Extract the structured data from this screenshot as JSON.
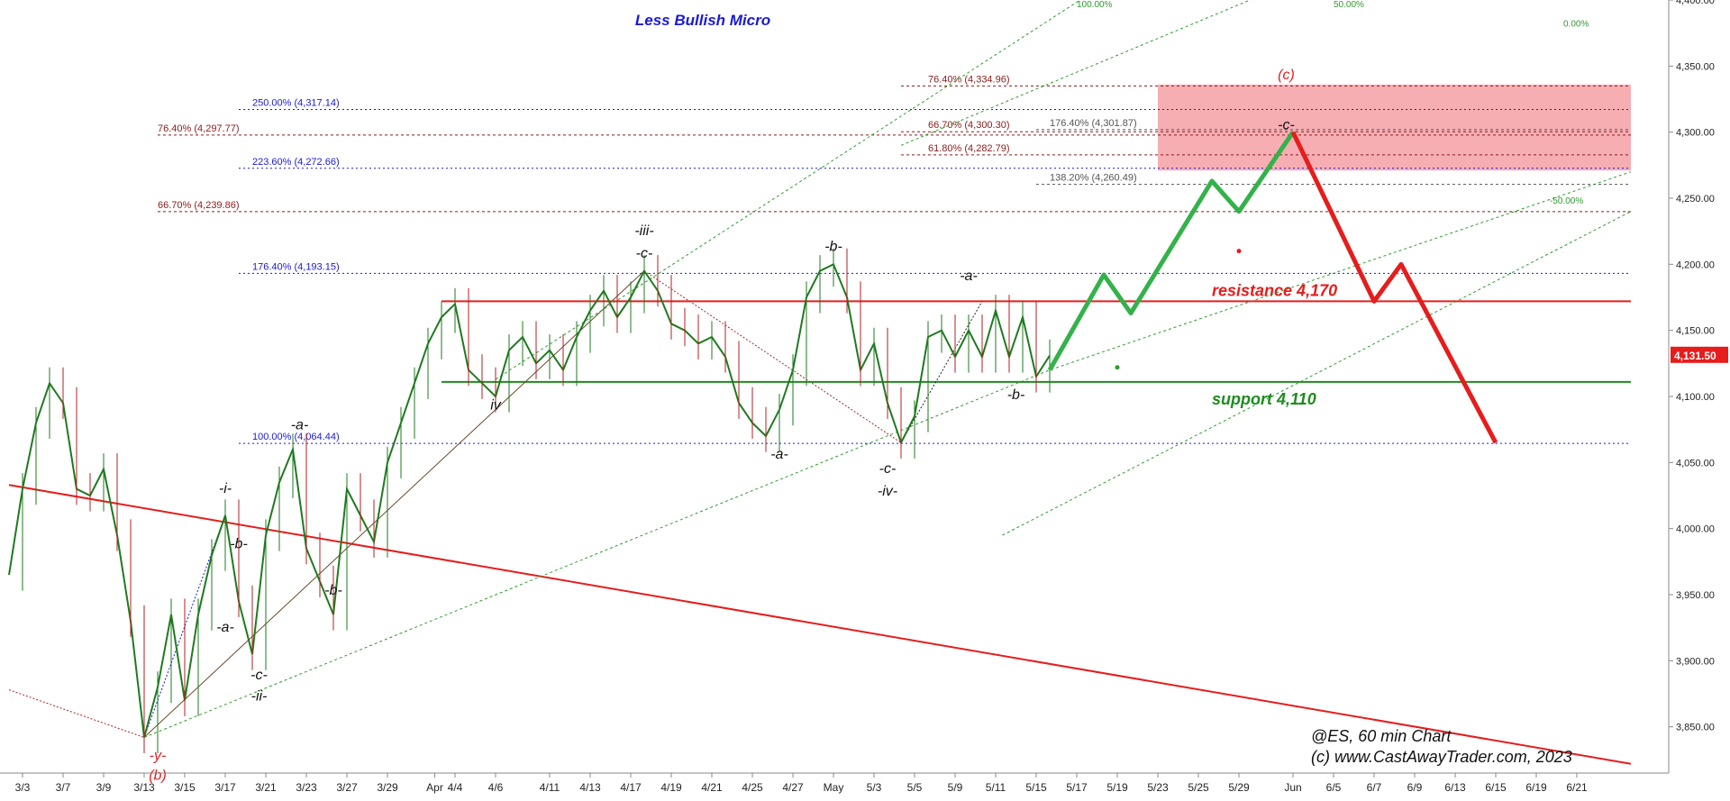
{
  "chart_data": {
    "type": "line",
    "title": "Less Bullish Micro",
    "title_color": "#1a1ad6",
    "footer": [
      "@ES, 60 min Chart",
      "(c) www.CastAwayTrader.com, 2023"
    ],
    "y_axis": {
      "ylim": [
        3815,
        4400
      ],
      "ticks": [
        {
          "v": 3850,
          "t": "3,850.00"
        },
        {
          "v": 3900,
          "t": "3,900.00"
        },
        {
          "v": 3950,
          "t": "3,950.00"
        },
        {
          "v": 4000,
          "t": "4,000.00"
        },
        {
          "v": 4050,
          "t": "4,050.00"
        },
        {
          "v": 4100,
          "t": "4,100.00"
        },
        {
          "v": 4150,
          "t": "4,150.00"
        },
        {
          "v": 4200,
          "t": "4,200.00"
        },
        {
          "v": 4250,
          "t": "4,250.00"
        },
        {
          "v": 4300,
          "t": "4,300.00"
        },
        {
          "v": 4350,
          "t": "4,350.00"
        },
        {
          "v": 4400,
          "t": "4,400.00"
        }
      ],
      "current_price": {
        "v": 4131.5,
        "text": "4,131.50",
        "color": "#e51d1d"
      }
    },
    "x_axis": {
      "xlim": [
        0,
        120
      ],
      "ticks": [
        {
          "x": 1,
          "t": "3/3"
        },
        {
          "x": 4,
          "t": "3/7"
        },
        {
          "x": 7,
          "t": "3/9"
        },
        {
          "x": 10,
          "t": "3/13"
        },
        {
          "x": 13,
          "t": "3/15"
        },
        {
          "x": 16,
          "t": "3/17"
        },
        {
          "x": 19,
          "t": "3/21"
        },
        {
          "x": 22,
          "t": "3/23"
        },
        {
          "x": 25,
          "t": "3/27"
        },
        {
          "x": 28,
          "t": "3/29"
        },
        {
          "x": 31.5,
          "t": "Apr"
        },
        {
          "x": 33,
          "t": "4/4"
        },
        {
          "x": 36,
          "t": "4/6"
        },
        {
          "x": 40,
          "t": "4/11"
        },
        {
          "x": 43,
          "t": "4/13"
        },
        {
          "x": 46,
          "t": "4/17"
        },
        {
          "x": 49,
          "t": "4/19"
        },
        {
          "x": 52,
          "t": "4/21"
        },
        {
          "x": 55,
          "t": "4/25"
        },
        {
          "x": 58,
          "t": "4/27"
        },
        {
          "x": 61,
          "t": "May"
        },
        {
          "x": 64,
          "t": "5/3"
        },
        {
          "x": 67,
          "t": "5/5"
        },
        {
          "x": 70,
          "t": "5/9"
        },
        {
          "x": 73,
          "t": "5/11"
        },
        {
          "x": 76,
          "t": "5/15"
        },
        {
          "x": 79,
          "t": "5/17"
        },
        {
          "x": 82,
          "t": "5/19"
        },
        {
          "x": 85,
          "t": "5/23"
        },
        {
          "x": 88,
          "t": "5/25"
        },
        {
          "x": 91,
          "t": "5/29"
        },
        {
          "x": 95,
          "t": "Jun"
        },
        {
          "x": 98,
          "t": "6/5"
        },
        {
          "x": 101,
          "t": "6/7"
        },
        {
          "x": 104,
          "t": "6/9"
        },
        {
          "x": 107,
          "t": "6/13"
        },
        {
          "x": 110,
          "t": "6/15"
        },
        {
          "x": 113,
          "t": "6/19"
        },
        {
          "x": 116,
          "t": "6/21"
        }
      ]
    },
    "price_path": [
      [
        0,
        3965
      ],
      [
        1,
        4030
      ],
      [
        2,
        4080
      ],
      [
        3,
        4110
      ],
      [
        4,
        4095
      ],
      [
        5,
        4030
      ],
      [
        6,
        4025
      ],
      [
        7,
        4045
      ],
      [
        8,
        3995
      ],
      [
        9,
        3930
      ],
      [
        10,
        3842
      ],
      [
        11,
        3880
      ],
      [
        12,
        3935
      ],
      [
        13,
        3870
      ],
      [
        14,
        3935
      ],
      [
        15,
        3980
      ],
      [
        16,
        4010
      ],
      [
        17,
        3945
      ],
      [
        18,
        3905
      ],
      [
        19,
        3995
      ],
      [
        20,
        4035
      ],
      [
        21,
        4060
      ],
      [
        22,
        3985
      ],
      [
        23,
        3960
      ],
      [
        24,
        3935
      ],
      [
        25,
        4030
      ],
      [
        26,
        4010
      ],
      [
        27,
        3990
      ],
      [
        28,
        4050
      ],
      [
        29,
        4080
      ],
      [
        30,
        4110
      ],
      [
        31,
        4140
      ],
      [
        32,
        4160
      ],
      [
        33,
        4170
      ],
      [
        34,
        4120
      ],
      [
        35,
        4110
      ],
      [
        36,
        4100
      ],
      [
        37,
        4135
      ],
      [
        38,
        4145
      ],
      [
        39,
        4125
      ],
      [
        40,
        4135
      ],
      [
        41,
        4120
      ],
      [
        42,
        4145
      ],
      [
        43,
        4165
      ],
      [
        44,
        4180
      ],
      [
        45,
        4160
      ],
      [
        46,
        4175
      ],
      [
        47,
        4195
      ],
      [
        48,
        4180
      ],
      [
        49,
        4155
      ],
      [
        50,
        4150
      ],
      [
        51,
        4140
      ],
      [
        52,
        4145
      ],
      [
        53,
        4130
      ],
      [
        54,
        4095
      ],
      [
        55,
        4080
      ],
      [
        56,
        4070
      ],
      [
        57,
        4090
      ],
      [
        58,
        4120
      ],
      [
        59,
        4175
      ],
      [
        60,
        4195
      ],
      [
        61,
        4200
      ],
      [
        62,
        4175
      ],
      [
        63,
        4120
      ],
      [
        64,
        4140
      ],
      [
        65,
        4095
      ],
      [
        66,
        4065
      ],
      [
        67,
        4085
      ],
      [
        68,
        4145
      ],
      [
        69,
        4150
      ],
      [
        70,
        4130
      ],
      [
        71,
        4150
      ],
      [
        72,
        4130
      ],
      [
        73,
        4165
      ],
      [
        74,
        4130
      ],
      [
        75,
        4160
      ],
      [
        76,
        4115
      ],
      [
        77,
        4131
      ]
    ],
    "projection_green": [
      [
        77,
        4120
      ],
      [
        81,
        4192
      ],
      [
        83,
        4163
      ],
      [
        89,
        4263
      ],
      [
        91,
        4240
      ],
      [
        95,
        4300
      ]
    ],
    "projection_red": [
      [
        95,
        4300
      ],
      [
        101,
        4172
      ],
      [
        103,
        4200
      ],
      [
        110,
        4065
      ]
    ],
    "horizontal_levels": [
      {
        "y": 4172,
        "x0": 32,
        "x1": 120,
        "color": "#e51d1d",
        "label": "resistance 4,170",
        "lx": 89,
        "ly": 4176
      },
      {
        "y": 4111,
        "x0": 32,
        "x1": 120,
        "color": "#1e8c1e",
        "label": "support 4,110",
        "lx": 89,
        "ly": 4094
      }
    ],
    "fib_levels": [
      {
        "y": 4334.96,
        "x0": 66,
        "x1": 120,
        "color": "#8b1a1a",
        "dash": "3,3",
        "label": "76.40% (4,334.96)",
        "lx": 68
      },
      {
        "y": 4317.14,
        "x0": 17,
        "x1": 120,
        "color": "#1a1ad6",
        "dash": "2,3",
        "label": "250.00% (4,317.14)",
        "lx": 18
      },
      {
        "y": 4301.87,
        "x0": 76,
        "x1": 120,
        "color": "#555555",
        "dash": "3,3",
        "label": "176.40% (4,301.87)",
        "lx": 77
      },
      {
        "y": 4300.3,
        "x0": 66,
        "x1": 120,
        "color": "#8b1a1a",
        "dash": "3,3",
        "label": "66.70% (4,300.30)",
        "lx": 68
      },
      {
        "y": 4297.77,
        "x0": 11,
        "x1": 120,
        "color": "#8b1a1a",
        "dash": "3,3",
        "label": "76.40% (4,297.77)",
        "lx": 11
      },
      {
        "y": 4282.79,
        "x0": 66,
        "x1": 120,
        "color": "#8b1a1a",
        "dash": "3,3",
        "label": "61.80% (4,282.79)",
        "lx": 68
      },
      {
        "y": 4272.66,
        "x0": 17,
        "x1": 120,
        "color": "#1a1ad6",
        "dash": "2,3",
        "label": "223.60% (4,272.66)",
        "lx": 18
      },
      {
        "y": 4260.49,
        "x0": 76,
        "x1": 120,
        "color": "#555555",
        "dash": "3,3",
        "label": "138.20% (4,260.49)",
        "lx": 77
      },
      {
        "y": 4239.86,
        "x0": 11,
        "x1": 120,
        "color": "#8b1a1a",
        "dash": "3,3",
        "label": "66.70% (4,239.86)",
        "lx": 11
      },
      {
        "y": 4193.15,
        "x0": 17,
        "x1": 120,
        "color": "#1a1ad6",
        "dash": "2,3",
        "label": "176.40% (4,193.15)",
        "lx": 18
      },
      {
        "y": 4064.44,
        "x0": 17,
        "x1": 120,
        "color": "#1a1ad6",
        "dash": "2,3",
        "label": "100.00% (4,064.44)",
        "lx": 18
      }
    ],
    "target_zone": {
      "x0": 85,
      "x1": 120,
      "y0": 4271,
      "y1": 4336,
      "fill": "#f4a0a6"
    },
    "trend_lines": [
      {
        "pts": [
          [
            0,
            4033
          ],
          [
            120,
            3822
          ]
        ],
        "color": "#e51d1d",
        "width": 2,
        "dash": ""
      },
      {
        "pts": [
          [
            0,
            3878
          ],
          [
            10,
            3842
          ]
        ],
        "color": "#b22222",
        "width": 1,
        "dash": "2,2"
      },
      {
        "pts": [
          [
            10,
            3842
          ],
          [
            47,
            4195
          ]
        ],
        "color": "#6b4a2a",
        "width": 1,
        "dash": ""
      },
      {
        "pts": [
          [
            10,
            3842
          ],
          [
            77,
            4120
          ],
          [
            120,
            4270
          ]
        ],
        "color": "#2e9b2e",
        "width": 1,
        "dash": "3,3"
      },
      {
        "pts": [
          [
            36,
            4113
          ],
          [
            80,
            4405
          ],
          [
            120,
            4495
          ]
        ],
        "color": "#2e9b2e",
        "width": 1,
        "dash": "3,3"
      },
      {
        "pts": [
          [
            66,
            4290
          ],
          [
            120,
            4520
          ]
        ],
        "color": "#2e9b2e",
        "width": 1,
        "dash": "3,3"
      },
      {
        "pts": [
          [
            73.5,
            3995
          ],
          [
            120,
            4240
          ]
        ],
        "color": "#2e9b2e",
        "width": 1,
        "dash": "3,3"
      },
      {
        "pts": [
          [
            47,
            4195
          ],
          [
            66,
            4065
          ]
        ],
        "color": "#b22222",
        "width": 1,
        "dash": "2,2"
      },
      {
        "pts": [
          [
            66,
            4065
          ],
          [
            72,
            4172
          ]
        ],
        "color": "#222222",
        "width": 1,
        "dash": "2,2"
      },
      {
        "pts": [
          [
            10,
            3842
          ],
          [
            16,
            4010
          ]
        ],
        "color": "#1a1ad6",
        "width": 1,
        "dash": "2,2"
      }
    ],
    "channel_labels": [
      {
        "x": 79,
        "y": 4405,
        "text": "100.00%"
      },
      {
        "x": 98,
        "y": 4405,
        "text": "50.00%"
      },
      {
        "x": 115,
        "y": 4380,
        "text": "0.00%"
      },
      {
        "x": 114,
        "y": 4246,
        "text": "-50.00%"
      }
    ],
    "wave_labels": [
      {
        "x": 47,
        "y": 4222,
        "text": "-iii-",
        "color": "#111111"
      },
      {
        "x": 47,
        "y": 4205,
        "text": "-c-",
        "color": "#111111"
      },
      {
        "x": 61,
        "y": 4210,
        "text": "-b-",
        "color": "#111111"
      },
      {
        "x": 71,
        "y": 4188,
        "text": "-a-",
        "color": "#111111"
      },
      {
        "x": 36,
        "y": 4090,
        "text": "iv",
        "color": "#111111"
      },
      {
        "x": 57,
        "y": 4053,
        "text": "-a-",
        "color": "#111111"
      },
      {
        "x": 65,
        "y": 4042,
        "text": "-c-",
        "color": "#111111"
      },
      {
        "x": 65,
        "y": 4025,
        "text": "-iv-",
        "color": "#111111"
      },
      {
        "x": 74.5,
        "y": 4098,
        "text": "-b-",
        "color": "#111111"
      },
      {
        "x": 21.5,
        "y": 4075,
        "text": "-a-",
        "color": "#111111"
      },
      {
        "x": 16,
        "y": 4027,
        "text": "-i-",
        "color": "#111111"
      },
      {
        "x": 17,
        "y": 3985,
        "text": "-b-",
        "color": "#111111"
      },
      {
        "x": 16,
        "y": 3922,
        "text": "-a-",
        "color": "#111111"
      },
      {
        "x": 18.5,
        "y": 3886,
        "text": "-c-",
        "color": "#111111"
      },
      {
        "x": 18.5,
        "y": 3870,
        "text": "-ii-",
        "color": "#111111"
      },
      {
        "x": 24,
        "y": 3950,
        "text": "-b-",
        "color": "#111111"
      },
      {
        "x": 11,
        "y": 3825,
        "text": "-y-",
        "color": "#e51d1d"
      },
      {
        "x": 11,
        "y": 3810,
        "text": "(b)",
        "color": "#e51d1d"
      },
      {
        "x": 94.5,
        "y": 4340,
        "text": "(c)",
        "color": "#e51d1d"
      },
      {
        "x": 94.5,
        "y": 4302,
        "text": "-c-",
        "color": "#111111"
      }
    ],
    "dots": [
      {
        "x": 91,
        "y": 4210,
        "color": "#e51d1d"
      },
      {
        "x": 82,
        "y": 4122,
        "color": "#2e9b2e"
      }
    ]
  }
}
